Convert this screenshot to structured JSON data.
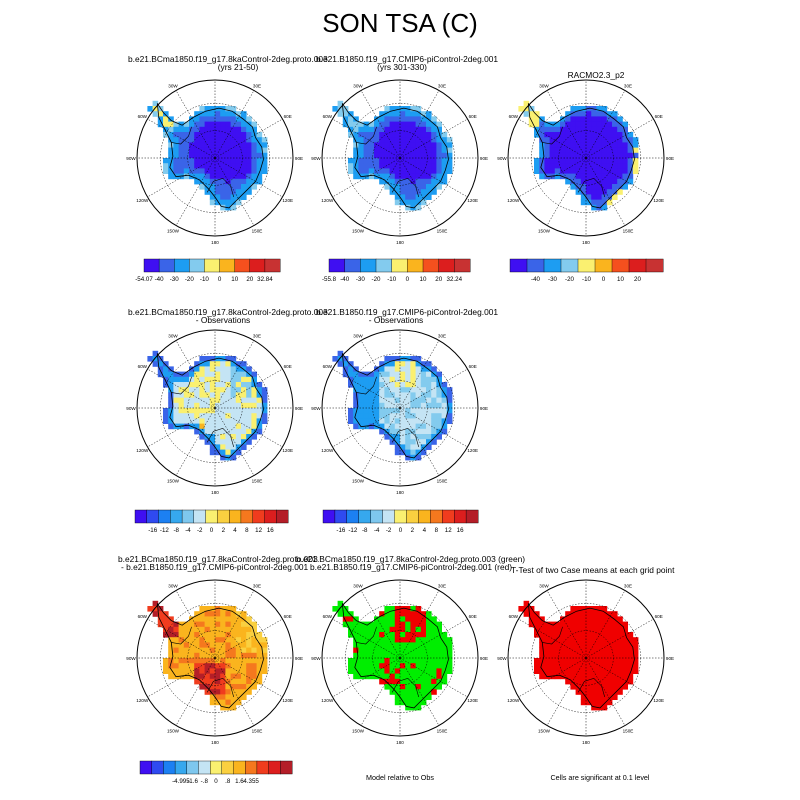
{
  "figure": {
    "title": "SON TSA (C)"
  },
  "chart_data": [
    {
      "type": "heatmap",
      "panel": "1a",
      "title": [
        "b.e21.BCma1850.f19_g17.8kaControl-2deg.proto.003",
        "(yrs 21-50)"
      ],
      "field": "absolute",
      "range": [
        -54.07,
        32.84
      ]
    },
    {
      "type": "heatmap",
      "panel": "1b",
      "title": [
        "b.e21.B1850.f19_g17.CMIP6-piControl-2deg.001",
        "(yrs 301-330)"
      ],
      "field": "absolute",
      "range": [
        -55.8,
        32.24
      ]
    },
    {
      "type": "heatmap",
      "panel": "1c",
      "title": [
        "RACMO2.3_p2"
      ],
      "field": "obs"
    },
    {
      "type": "heatmap",
      "panel": "2a",
      "title": [
        "b.e21.BCma1850.f19_g17.8kaControl-2deg.proto.003",
        "- Observations"
      ],
      "field": "anomaly1"
    },
    {
      "type": "heatmap",
      "panel": "2b",
      "title": [
        "b.e21.B1850.f19_g17.CMIP6-piControl-2deg.001",
        "- Observations"
      ],
      "field": "anomaly2"
    },
    {
      "type": "heatmap",
      "panel": "3a",
      "title": [
        "b.e21.BCma1850.f19_g17.8kaControl-2deg.proto.003",
        "- b.e21.B1850.f19_g17.CMIP6-piControl-2deg.001"
      ],
      "field": "difference",
      "range": [
        -4.995,
        4.355
      ]
    },
    {
      "type": "heatmap",
      "panel": "3b",
      "title": [
        "b.e21.BCma1850.f19_g17.8kaControl-2deg.proto.003 (green)",
        "b.e21.B1850.f19_g17.CMIP6-piControl-2deg.001 (red)"
      ],
      "field": "closer",
      "note": "Model relative to Obs"
    },
    {
      "type": "heatmap",
      "panel": "3c",
      "title": [
        "T-Test of two Case means at each grid point"
      ],
      "field": "ttest",
      "note": "Cells are significant at 0.1 level"
    }
  ],
  "map": {
    "lon_labels": [
      "30W",
      "30E",
      "60W",
      "60E",
      "90W",
      "90E",
      "120W",
      "120E",
      "150W",
      "150E",
      "180"
    ]
  },
  "colorbars": [
    {
      "id": "cb1",
      "labels": [
        "-54.07",
        "-40",
        "-30",
        "-20",
        "-10",
        "0",
        "10",
        "20",
        "32.84"
      ],
      "colors": [
        "#3f0ff2",
        "#3a64e8",
        "#1d9df2",
        "#83cbee",
        "#faf070",
        "#fab41e",
        "#f5501e",
        "#dc1e1e",
        "#c83232"
      ]
    },
    {
      "id": "cb2",
      "labels": [
        "-55.8",
        "-40",
        "-30",
        "-20",
        "-10",
        "0",
        "10",
        "20",
        "32.24"
      ],
      "colors": [
        "#3f0ff2",
        "#3a64e8",
        "#1d9df2",
        "#83cbee",
        "#faf070",
        "#fab41e",
        "#f5501e",
        "#dc1e1e",
        "#c83232"
      ]
    },
    {
      "id": "cb3",
      "labels": [
        "-40",
        "-30",
        "-20",
        "-10",
        "0",
        "10",
        "20"
      ],
      "colors": [
        "#3f0ff2",
        "#3a64e8",
        "#1d9df2",
        "#83cbee",
        "#faf070",
        "#fab41e",
        "#f5501e",
        "#dc1e1e",
        "#c83232"
      ]
    },
    {
      "id": "cb4",
      "labels": [
        "-16",
        "-12",
        "-8",
        "-4",
        "-2",
        "0",
        "2",
        "4",
        "8",
        "12",
        "16"
      ],
      "colors": [
        "#3f0ff2",
        "#2f4af0",
        "#1c80f2",
        "#36a8ee",
        "#7ec7ee",
        "#c4e4f4",
        "#faf070",
        "#fad040",
        "#fab41e",
        "#f5781e",
        "#f03c1e",
        "#dc1e1e",
        "#b41e28"
      ]
    },
    {
      "id": "cb5",
      "labels": [
        "-16",
        "-12",
        "-8",
        "-4",
        "-2",
        "0",
        "2",
        "4",
        "8",
        "12",
        "16"
      ],
      "colors": [
        "#3f0ff2",
        "#2f4af0",
        "#1c80f2",
        "#36a8ee",
        "#7ec7ee",
        "#c4e4f4",
        "#faf070",
        "#fad040",
        "#fab41e",
        "#f5781e",
        "#f03c1e",
        "#dc1e1e",
        "#b41e28"
      ]
    },
    {
      "id": "cb6",
      "labels": [
        "-4.995",
        "-1.6",
        "-.8",
        "0",
        ".8",
        "1.6",
        "4.355"
      ],
      "colors": [
        "#3f0ff2",
        "#2f4af0",
        "#1c80f2",
        "#36a8ee",
        "#7ec7ee",
        "#c4e4f4",
        "#faf070",
        "#fad040",
        "#fab41e",
        "#f5781e",
        "#f03c1e",
        "#dc1e1e",
        "#b41e28"
      ]
    }
  ],
  "colors": {
    "deep_blue": "#3f0ff2",
    "blue": "#3a64e8",
    "mid_blue": "#1d9df2",
    "light_blue": "#83cbee",
    "pale_blue": "#c4e4f4",
    "yellow": "#faf070",
    "gold": "#fad040",
    "orange": "#fab41e",
    "dark_orange": "#f5781e",
    "red": "#f03c1e",
    "dark_red": "#b41e28",
    "bright_red": "#f00000",
    "green": "#00ee00"
  }
}
